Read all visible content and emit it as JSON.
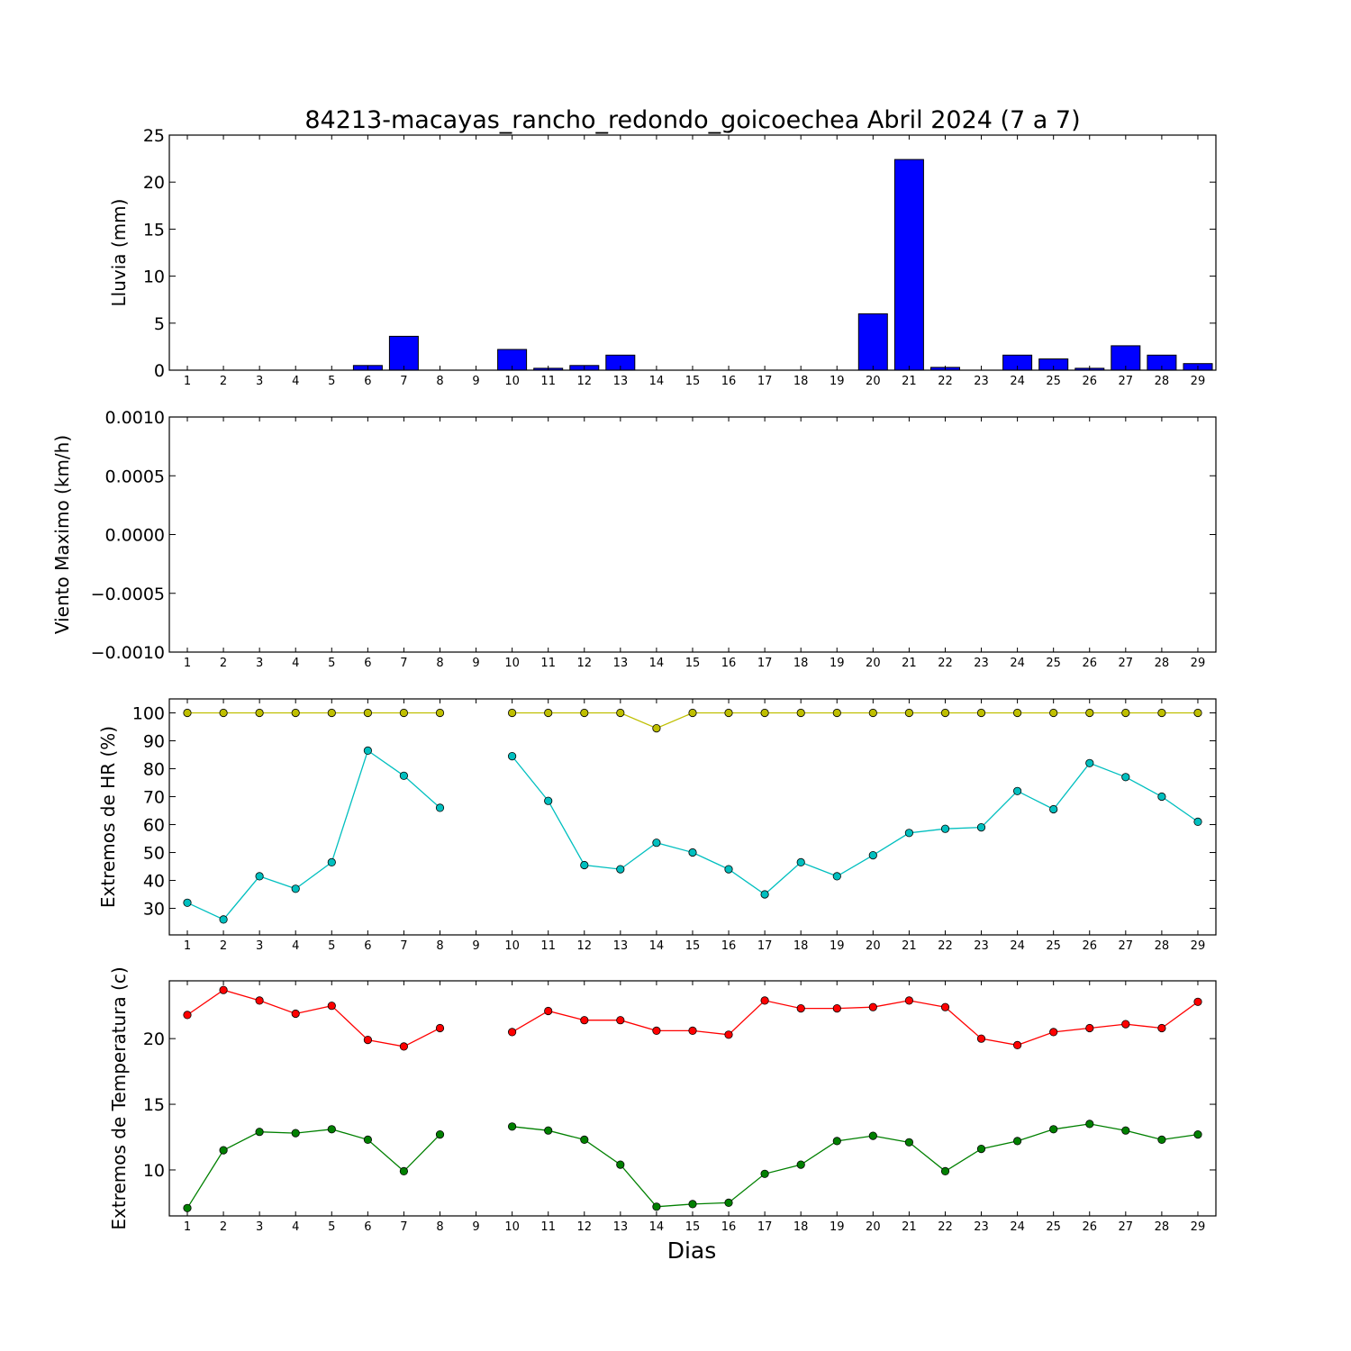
{
  "title": "84213-macayas_rancho_redondo_goicoechea Abril 2024  (7 a 7)",
  "xlabel": "Dias",
  "days": [
    1,
    2,
    3,
    4,
    5,
    6,
    7,
    8,
    9,
    10,
    11,
    12,
    13,
    14,
    15,
    16,
    17,
    18,
    19,
    20,
    21,
    22,
    23,
    24,
    25,
    26,
    27,
    28,
    29
  ],
  "colors": {
    "rain": "#0000ff",
    "hr_max": "#bfbf00",
    "hr_min": "#00bfbf",
    "temp_max": "#ff0000",
    "temp_min": "#008000"
  },
  "chart_data": [
    {
      "type": "bar",
      "ylabel": "Lluvia (mm)",
      "ylim": [
        0,
        25
      ],
      "yticks": [
        "0",
        "5",
        "10",
        "15",
        "20",
        "25"
      ],
      "categories": [
        1,
        2,
        3,
        4,
        5,
        6,
        7,
        8,
        9,
        10,
        11,
        12,
        13,
        14,
        15,
        16,
        17,
        18,
        19,
        20,
        21,
        22,
        23,
        24,
        25,
        26,
        27,
        28,
        29
      ],
      "values": [
        0,
        0,
        0,
        0,
        0,
        0.5,
        3.6,
        0,
        0,
        2.2,
        0.2,
        0.5,
        1.6,
        0,
        0,
        0,
        0,
        0,
        0,
        6.0,
        22.4,
        0.3,
        0,
        1.6,
        1.2,
        0.2,
        2.6,
        1.6,
        0.7
      ]
    },
    {
      "type": "line",
      "ylabel": "Viento Maximo (km/h)",
      "ylim": [
        -0.001,
        0.001
      ],
      "yticks": [
        "0.0010",
        "0.0005",
        "0.0000",
        "−0.0005",
        "−0.0010"
      ],
      "x": [
        1,
        2,
        3,
        4,
        5,
        6,
        7,
        8,
        9,
        10,
        11,
        12,
        13,
        14,
        15,
        16,
        17,
        18,
        19,
        20,
        21,
        22,
        23,
        24,
        25,
        26,
        27,
        28,
        29
      ],
      "series": []
    },
    {
      "type": "line",
      "ylabel": "Extremos de HR (%)",
      "ylim": [
        20.5,
        105
      ],
      "yticks": [
        "100",
        "90",
        "80",
        "70",
        "60",
        "50",
        "40",
        "30"
      ],
      "x": [
        1,
        2,
        3,
        4,
        5,
        6,
        7,
        8,
        9,
        10,
        11,
        12,
        13,
        14,
        15,
        16,
        17,
        18,
        19,
        20,
        21,
        22,
        23,
        24,
        25,
        26,
        27,
        28,
        29
      ],
      "series": [
        {
          "values": [
            100,
            100,
            100,
            100,
            100,
            100,
            100,
            100,
            null,
            100,
            100,
            100,
            100,
            94.5,
            100,
            100,
            100,
            100,
            100,
            100,
            100,
            100,
            100,
            100,
            100,
            100,
            100,
            100,
            100
          ]
        },
        {
          "values": [
            32,
            26,
            41.5,
            37,
            46.5,
            86.5,
            77.5,
            66,
            null,
            84.5,
            68.5,
            45.5,
            44,
            53.5,
            50,
            44,
            35,
            46.5,
            41.5,
            49,
            57,
            58.5,
            59,
            72,
            65.5,
            82,
            77,
            70,
            61
          ]
        }
      ]
    },
    {
      "type": "line",
      "ylabel": "Extremos de Temperatura (c)",
      "ylim": [
        6.5,
        24.4
      ],
      "yticks": [
        "20",
        "15",
        "10"
      ],
      "x": [
        1,
        2,
        3,
        4,
        5,
        6,
        7,
        8,
        9,
        10,
        11,
        12,
        13,
        14,
        15,
        16,
        17,
        18,
        19,
        20,
        21,
        22,
        23,
        24,
        25,
        26,
        27,
        28,
        29
      ],
      "series": [
        {
          "values": [
            21.8,
            23.7,
            22.9,
            21.9,
            22.5,
            19.9,
            19.4,
            20.8,
            null,
            20.5,
            22.1,
            21.4,
            21.4,
            20.6,
            20.6,
            20.3,
            22.9,
            22.3,
            22.3,
            22.4,
            22.9,
            22.4,
            20.0,
            19.5,
            20.5,
            20.8,
            21.1,
            20.8,
            22.8
          ]
        },
        {
          "values": [
            7.1,
            11.5,
            12.9,
            12.8,
            13.1,
            12.3,
            9.9,
            12.7,
            null,
            13.3,
            13.0,
            12.3,
            10.4,
            7.2,
            7.4,
            7.5,
            9.7,
            10.4,
            12.2,
            12.6,
            12.1,
            9.9,
            11.6,
            12.2,
            13.1,
            13.5,
            13.0,
            12.3,
            12.7
          ]
        }
      ]
    }
  ]
}
